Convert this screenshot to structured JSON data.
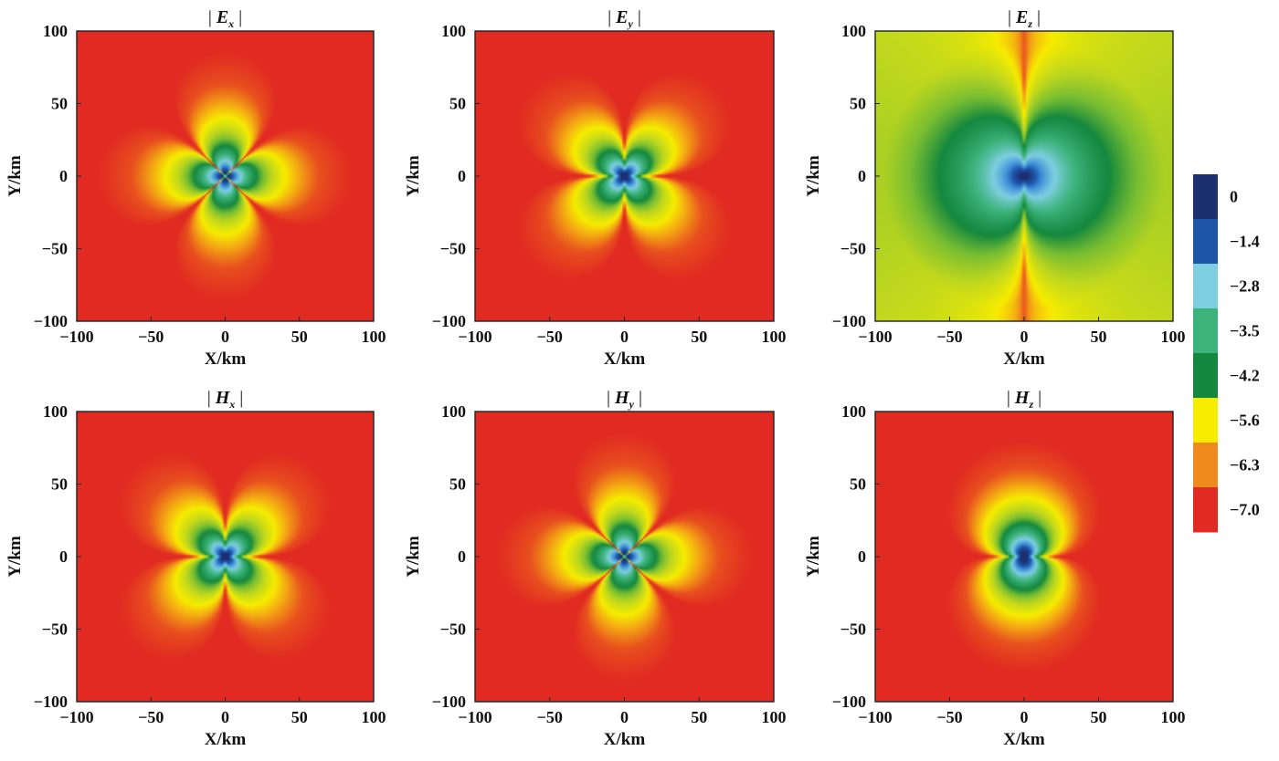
{
  "chart_data": [
    {
      "type": "heatmap",
      "title": "| Ex |",
      "title_main": "E",
      "title_sub": "x",
      "xlabel": "X/km",
      "ylabel": "Y/km",
      "xlim": [
        -100,
        100
      ],
      "ylim": [
        -100,
        100
      ],
      "xticks": [
        "−100",
        "−50",
        "0",
        "50",
        "100"
      ],
      "yticks": [
        "100",
        "50",
        "0",
        "−50",
        "−100"
      ],
      "pattern": "four-lobe diagonal-nulls"
    },
    {
      "type": "heatmap",
      "title": "| Ey |",
      "title_main": "E",
      "title_sub": "y",
      "xlabel": "X/km",
      "ylabel": "Y/km",
      "xlim": [
        -100,
        100
      ],
      "ylim": [
        -100,
        100
      ],
      "xticks": [
        "−100",
        "−50",
        "0",
        "50",
        "100"
      ],
      "yticks": [
        "100",
        "50",
        "0",
        "−50",
        "−100"
      ],
      "pattern": "four-lobe axis-nulls"
    },
    {
      "type": "heatmap",
      "title": "| Ez |",
      "title_main": "E",
      "title_sub": "z",
      "xlabel": "X/km",
      "ylabel": "Y/km",
      "xlim": [
        -100,
        100
      ],
      "ylim": [
        -100,
        100
      ],
      "xticks": [
        "−100",
        "−50",
        "0",
        "50",
        "100"
      ],
      "yticks": [
        "100",
        "50",
        "0",
        "−50",
        "−100"
      ],
      "pattern": "two-lobe vertical-null"
    },
    {
      "type": "heatmap",
      "title": "| Hx |",
      "title_main": "H",
      "title_sub": "x",
      "xlabel": "X/km",
      "ylabel": "Y/km",
      "xlim": [
        -100,
        100
      ],
      "ylim": [
        -100,
        100
      ],
      "xticks": [
        "−100",
        "−50",
        "0",
        "50",
        "100"
      ],
      "yticks": [
        "100",
        "50",
        "0",
        "−50",
        "−100"
      ],
      "pattern": "four-lobe axis-nulls"
    },
    {
      "type": "heatmap",
      "title": "| Hy |",
      "title_main": "H",
      "title_sub": "y",
      "xlabel": "X/km",
      "ylabel": "Y/km",
      "xlim": [
        -100,
        100
      ],
      "ylim": [
        -100,
        100
      ],
      "xticks": [
        "−100",
        "−50",
        "0",
        "50",
        "100"
      ],
      "yticks": [
        "100",
        "50",
        "0",
        "−50",
        "−100"
      ],
      "pattern": "four-lobe diagonal-nulls"
    },
    {
      "type": "heatmap",
      "title": "| Hz |",
      "title_main": "H",
      "title_sub": "z",
      "xlabel": "X/km",
      "ylabel": "Y/km",
      "xlim": [
        -100,
        100
      ],
      "ylim": [
        -100,
        100
      ],
      "xticks": [
        "−100",
        "−50",
        "0",
        "50",
        "100"
      ],
      "yticks": [
        "100",
        "50",
        "0",
        "−50",
        "−100"
      ],
      "pattern": "dipole horizontal-null"
    }
  ],
  "colorbar": {
    "labels": [
      "0",
      "−1.4",
      "−2.8",
      "−3.5",
      "−4.2",
      "−5.6",
      "−6.3",
      "−7.0"
    ],
    "colors": [
      "#1c2f6e",
      "#1f55a8",
      "#7ecfe0",
      "#3db37c",
      "#14883e",
      "#f6ec00",
      "#ee8a1e",
      "#e12b22"
    ]
  }
}
